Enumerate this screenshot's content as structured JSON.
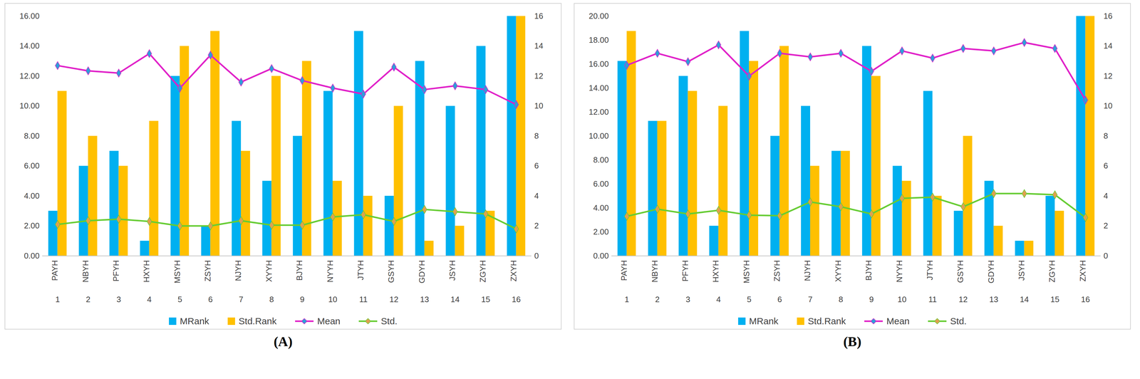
{
  "chart_data": [
    {
      "type": "bar",
      "panel_label": "(A)",
      "categories": [
        "PAYH",
        "NBYH",
        "PFYH",
        "HXYH",
        "MSYH",
        "ZSYH",
        "NJYH",
        "XYYH",
        "BJYH",
        "NYYH",
        "JTYH",
        "GSYH",
        "GDYH",
        "JSYH",
        "ZGYH",
        "ZXYH"
      ],
      "category_numbers": [
        1,
        2,
        3,
        4,
        5,
        6,
        7,
        8,
        9,
        10,
        11,
        12,
        13,
        14,
        15,
        16
      ],
      "ylim": [
        0,
        16
      ],
      "yticks": [
        {
          "value": 0,
          "label": "0.00"
        },
        {
          "value": 2,
          "label": "2.00"
        },
        {
          "value": 4,
          "label": "4.00"
        },
        {
          "value": 6,
          "label": "6.00"
        },
        {
          "value": 8,
          "label": "8.00"
        },
        {
          "value": 10,
          "label": "10.00"
        },
        {
          "value": 12,
          "label": "12.00"
        },
        {
          "value": 14,
          "label": "14.00"
        },
        {
          "value": 16,
          "label": "16.00"
        }
      ],
      "y2lim": [
        0,
        16
      ],
      "y2ticks": [
        0,
        2,
        4,
        6,
        8,
        10,
        12,
        14,
        16
      ],
      "grid": false,
      "legend": "bottom",
      "series": [
        {
          "name": "MRank",
          "type": "bar",
          "axis": "y2",
          "color": "#00b0f0",
          "values": [
            3,
            6,
            7,
            1,
            12,
            2,
            9,
            5,
            8,
            11,
            15,
            4,
            13,
            10,
            14,
            16
          ]
        },
        {
          "name": "Std.Rank",
          "type": "bar",
          "axis": "y2",
          "color": "#ffc000",
          "values": [
            11,
            8,
            6,
            9,
            14,
            15,
            7,
            12,
            13,
            5,
            4,
            10,
            1,
            2,
            3,
            16
          ]
        },
        {
          "name": "Mean",
          "type": "line",
          "marker": "diamond",
          "color": "#e020c8",
          "values": [
            12.7,
            12.35,
            12.2,
            13.5,
            11.2,
            13.4,
            11.6,
            12.5,
            11.7,
            11.2,
            10.8,
            12.6,
            11.1,
            11.35,
            11.1,
            10.1
          ]
        },
        {
          "name": "Std.",
          "type": "line",
          "marker": "diamond",
          "color": "#66cc33",
          "values": [
            2.1,
            2.35,
            2.45,
            2.3,
            2.0,
            2.0,
            2.35,
            2.05,
            2.05,
            2.6,
            2.75,
            2.3,
            3.1,
            2.95,
            2.8,
            1.8
          ]
        }
      ]
    },
    {
      "type": "bar",
      "panel_label": "(B)",
      "categories": [
        "PAYH",
        "NBYH",
        "PFYH",
        "HXYH",
        "MSYH",
        "ZSYH",
        "NJYH",
        "XYYH",
        "BJYH",
        "NYYH",
        "JTYH",
        "GSYH",
        "GDYH",
        "JSYH",
        "ZGYH",
        "ZXYH"
      ],
      "category_numbers": [
        1,
        2,
        3,
        4,
        5,
        6,
        7,
        8,
        9,
        10,
        11,
        12,
        13,
        14,
        15,
        16
      ],
      "ylim": [
        0,
        20
      ],
      "yticks": [
        {
          "value": 0,
          "label": "0.00"
        },
        {
          "value": 2,
          "label": "2.00"
        },
        {
          "value": 4,
          "label": "4.00"
        },
        {
          "value": 6,
          "label": "6.00"
        },
        {
          "value": 8,
          "label": "8.00"
        },
        {
          "value": 10,
          "label": "10.00"
        },
        {
          "value": 12,
          "label": "12.00"
        },
        {
          "value": 14,
          "label": "14.00"
        },
        {
          "value": 16,
          "label": "16.00"
        },
        {
          "value": 18,
          "label": "18.00"
        },
        {
          "value": 20,
          "label": "20.00"
        }
      ],
      "y2lim": [
        0,
        16
      ],
      "y2ticks": [
        0,
        2,
        4,
        6,
        8,
        10,
        12,
        14,
        16
      ],
      "grid": false,
      "legend": "bottom",
      "series": [
        {
          "name": "MRank",
          "type": "bar",
          "axis": "y2",
          "color": "#00b0f0",
          "values": [
            13,
            9,
            12,
            2,
            15,
            8,
            10,
            7,
            14,
            6,
            11,
            3,
            5,
            1,
            4,
            16
          ]
        },
        {
          "name": "Std.Rank",
          "type": "bar",
          "axis": "y2",
          "color": "#ffc000",
          "values": [
            15,
            9,
            11,
            10,
            13,
            14,
            6,
            7,
            12,
            5,
            4,
            8,
            2,
            1,
            3,
            16
          ]
        },
        {
          "name": "Mean",
          "type": "line",
          "marker": "diamond",
          "color": "#e020c8",
          "values": [
            15.9,
            16.9,
            16.2,
            17.6,
            15.0,
            16.9,
            16.6,
            16.9,
            15.4,
            17.1,
            16.5,
            17.3,
            17.1,
            17.8,
            17.3,
            13.0
          ]
        },
        {
          "name": "Std.",
          "type": "line",
          "marker": "diamond",
          "color": "#66cc33",
          "values": [
            3.3,
            3.9,
            3.5,
            3.8,
            3.4,
            3.35,
            4.5,
            4.1,
            3.5,
            4.8,
            4.9,
            4.1,
            5.2,
            5.2,
            5.1,
            3.2
          ]
        }
      ]
    }
  ]
}
